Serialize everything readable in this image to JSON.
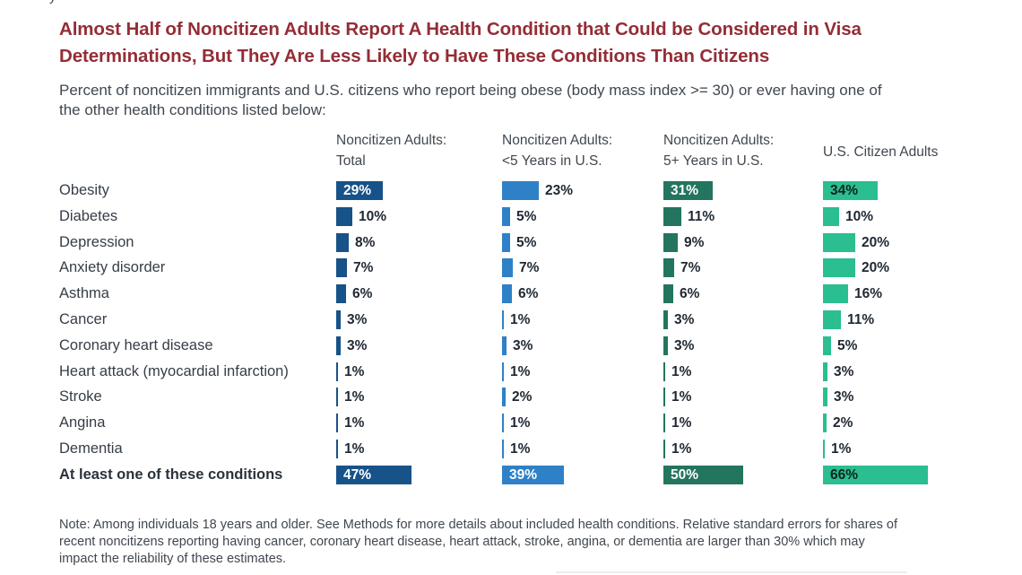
{
  "title": {
    "lines": [
      "Almost Half of Noncitizen Adults Report A Health Condition that Could be Considered in Visa",
      "Determinations, But They Are Less Likely to Have These Conditions Than Citizens"
    ],
    "color": "#942d36"
  },
  "subtitle": {
    "lines": [
      "Percent of noncitizen immigrants and U.S. citizens who report being obese (body mass index >= 30) or ever having one of",
      "the other health conditions listed below:"
    ]
  },
  "note": {
    "lines": [
      "Note: Among individuals 18 years and older. See Methods for more details about included health conditions. Relative standard errors for shares of",
      "recent noncitizens reporting having cancer, coronary heart disease, heart attack, stroke, angina, or dementia are larger than 30% which may",
      "impact the reliability of these estimates."
    ]
  },
  "chart_data": {
    "type": "bar",
    "orientation": "horizontal",
    "value_suffix": "%",
    "xlim": [
      0,
      100
    ],
    "categories": [
      "Obesity",
      "Diabetes",
      "Depression",
      "Anxiety disorder",
      "Asthma",
      "Cancer",
      "Coronary heart disease",
      "Heart attack (myocardial infarction)",
      "Stroke",
      "Angina",
      "Dementia",
      "At least one of these conditions"
    ],
    "bold_category_indexes": [
      11
    ],
    "series": [
      {
        "name": "Noncitizen Adults: Total",
        "header_lines": [
          "Noncitizen Adults:",
          "Total"
        ],
        "color": "#175289",
        "label_color_on_bar": "#ffffff",
        "values": [
          29,
          10,
          8,
          7,
          6,
          3,
          3,
          1,
          1,
          1,
          1,
          47
        ],
        "inside_label_rows": [
          0,
          11
        ]
      },
      {
        "name": "Noncitizen Adults: <5 Years in U.S.",
        "header_lines": [
          "Noncitizen Adults:",
          "<5 Years in U.S."
        ],
        "color": "#2e81c6",
        "label_color_on_bar": "#ffffff",
        "values": [
          23,
          5,
          5,
          7,
          6,
          1,
          3,
          1,
          2,
          1,
          1,
          39
        ],
        "inside_label_rows": [
          11
        ]
      },
      {
        "name": "Noncitizen Adults: 5+ Years in U.S.",
        "header_lines": [
          "Noncitizen Adults:",
          "5+ Years in U.S."
        ],
        "color": "#23755f",
        "label_color_on_bar": "#ffffff",
        "values": [
          31,
          11,
          9,
          7,
          6,
          3,
          3,
          1,
          1,
          1,
          1,
          50
        ],
        "inside_label_rows": [
          0,
          11
        ]
      },
      {
        "name": "U.S. Citizen Adults",
        "header_lines": [
          "U.S. Citizen Adults"
        ],
        "color": "#2abe90",
        "label_color_on_bar": "#0e241c",
        "values": [
          34,
          10,
          20,
          20,
          16,
          11,
          5,
          3,
          3,
          2,
          1,
          66
        ],
        "inside_label_rows": [
          0,
          11
        ]
      }
    ]
  },
  "artifact": {
    "top_clipped_text": "y"
  }
}
